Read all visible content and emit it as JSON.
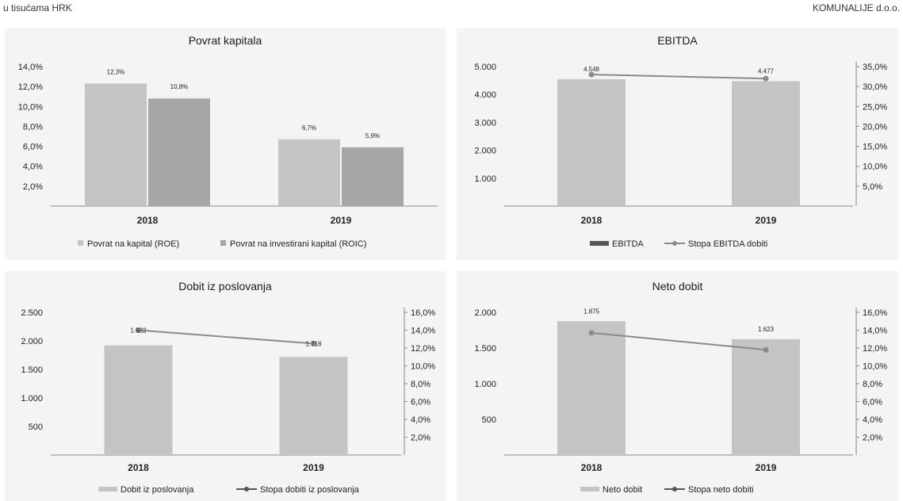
{
  "header": {
    "left": "u tisućama HRK",
    "right": "KOMUNALIJE d.o.o."
  },
  "colors": {
    "panel_bg": "#f4f4f4",
    "bar_light": "#c4c4c4",
    "bar_dark": "#a6a6a6",
    "line": "#8a8a8a",
    "line_dark": "#555555",
    "axis": "#888888"
  },
  "chart_data": [
    {
      "type": "bar",
      "title": "Povrat kapitala",
      "categories": [
        "2018",
        "2019"
      ],
      "series": [
        {
          "name": "Povrat na kapital (ROE)",
          "values": [
            12.3,
            6.7
          ],
          "labels": [
            "12,3%",
            "6,7%"
          ]
        },
        {
          "name": "Povrat na investirani kapital (ROIC)",
          "values": [
            10.8,
            5.9
          ],
          "labels": [
            "10,8%",
            "5,9%"
          ]
        }
      ],
      "ylim": [
        0,
        14
      ],
      "yticks": [
        "2,0%",
        "4,0%",
        "6,0%",
        "8,0%",
        "10,0%",
        "12,0%",
        "14,0%"
      ],
      "legend_position": "bottom"
    },
    {
      "type": "bar+line",
      "title": "EBITDA",
      "categories": [
        "2018",
        "2019"
      ],
      "bar_series": {
        "name": "EBITDA",
        "values": [
          4548,
          4477
        ],
        "labels": [
          "4.548",
          "4.477"
        ]
      },
      "line_series": {
        "name": "Stopa EBITDA dobiti",
        "values": [
          33.0,
          32.0
        ]
      },
      "ylim": [
        0,
        5000
      ],
      "yticks": [
        "1.000",
        "2.000",
        "3.000",
        "4.000",
        "5.000"
      ],
      "y2lim": [
        0,
        35
      ],
      "y2ticks": [
        "5,0%",
        "10,0%",
        "15,0%",
        "20,0%",
        "25,0%",
        "30,0%",
        "35,0%"
      ],
      "legend_position": "bottom"
    },
    {
      "type": "bar+line",
      "title": "Dobit iz poslovanja",
      "categories": [
        "2018",
        "2019"
      ],
      "bar_series": {
        "name": "Dobit iz poslovanja",
        "values": [
          1922,
          1718
        ],
        "labels": [
          "1.922",
          "1.718"
        ]
      },
      "line_series": {
        "name": "Stopa dobiti iz poslovanja",
        "values": [
          14.0,
          12.5
        ]
      },
      "ylim": [
        0,
        2500
      ],
      "yticks": [
        "500",
        "1.000",
        "1.500",
        "2.000",
        "2.500"
      ],
      "y2lim": [
        0,
        16
      ],
      "y2ticks": [
        "2,0%",
        "4,0%",
        "6,0%",
        "8,0%",
        "10,0%",
        "12,0%",
        "14,0%",
        "16,0%"
      ],
      "legend_position": "bottom"
    },
    {
      "type": "bar+line",
      "title": "Neto dobit",
      "categories": [
        "2018",
        "2019"
      ],
      "bar_series": {
        "name": "Neto dobit",
        "values": [
          1875,
          1623
        ],
        "labels": [
          "1.875",
          "1.623"
        ]
      },
      "line_series": {
        "name": "Stopa neto dobiti",
        "values": [
          13.7,
          11.8
        ]
      },
      "ylim": [
        0,
        2000
      ],
      "yticks": [
        "500",
        "1.000",
        "1.500",
        "2.000"
      ],
      "y2lim": [
        0,
        16
      ],
      "y2ticks": [
        "2,0%",
        "4,0%",
        "6,0%",
        "8,0%",
        "10,0%",
        "12,0%",
        "14,0%",
        "16,0%"
      ],
      "legend_position": "bottom"
    }
  ]
}
